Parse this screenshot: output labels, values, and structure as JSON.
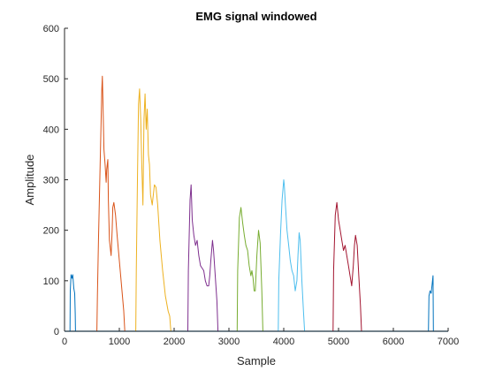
{
  "chart_data": {
    "type": "line",
    "title": "EMG signal windowed",
    "xlabel": "Sample",
    "ylabel": "Amplitude",
    "xlim": [
      0,
      7000
    ],
    "ylim": [
      0,
      600
    ],
    "xticks": [
      0,
      1000,
      2000,
      3000,
      4000,
      5000,
      6000,
      7000
    ],
    "yticks": [
      0,
      100,
      200,
      300,
      400,
      500,
      600
    ],
    "grid": false,
    "legend": "none",
    "baseline": {
      "color": "#0072BD",
      "x": [
        0,
        7000
      ],
      "y": [
        0,
        0
      ]
    },
    "series": [
      {
        "color": "#0072BD",
        "x": [
          100,
          105,
          120,
          135,
          150,
          170,
          185,
          195,
          200
        ],
        "y": [
          0,
          80,
          112,
          105,
          112,
          85,
          75,
          35,
          0
        ]
      },
      {
        "color": "#D95319",
        "x": [
          590,
          600,
          620,
          650,
          680,
          690,
          700,
          720,
          740,
          760,
          770,
          790,
          800,
          820,
          850,
          870,
          880,
          900,
          930,
          960,
          1000,
          1040,
          1080,
          1100
        ],
        "y": [
          0,
          70,
          180,
          330,
          480,
          505,
          460,
          360,
          330,
          295,
          320,
          340,
          260,
          180,
          150,
          200,
          245,
          255,
          230,
          190,
          140,
          90,
          40,
          0
        ]
      },
      {
        "color": "#EDB120",
        "x": [
          1300,
          1310,
          1330,
          1350,
          1370,
          1390,
          1410,
          1430,
          1450,
          1470,
          1490,
          1510,
          1530,
          1550,
          1570,
          1600,
          1640,
          1670,
          1700,
          1740,
          1790,
          1840,
          1890,
          1920,
          1940
        ],
        "y": [
          0,
          120,
          300,
          450,
          480,
          420,
          330,
          250,
          420,
          470,
          400,
          440,
          350,
          330,
          270,
          250,
          290,
          285,
          250,
          180,
          120,
          70,
          40,
          30,
          0
        ]
      },
      {
        "color": "#7E2F8E",
        "x": [
          2250,
          2260,
          2290,
          2310,
          2330,
          2360,
          2390,
          2420,
          2450,
          2480,
          2510,
          2540,
          2570,
          2600,
          2630,
          2650,
          2670,
          2700,
          2720,
          2750,
          2780,
          2800
        ],
        "y": [
          0,
          120,
          260,
          290,
          220,
          190,
          170,
          180,
          150,
          130,
          125,
          120,
          100,
          90,
          90,
          110,
          140,
          180,
          160,
          110,
          60,
          0
        ]
      },
      {
        "color": "#77AC30",
        "x": [
          3150,
          3160,
          3190,
          3220,
          3250,
          3280,
          3310,
          3340,
          3370,
          3400,
          3420,
          3440,
          3460,
          3480,
          3510,
          3540,
          3570,
          3600,
          3620
        ],
        "y": [
          0,
          120,
          225,
          245,
          215,
          190,
          170,
          160,
          130,
          110,
          120,
          105,
          80,
          80,
          150,
          200,
          175,
          80,
          0
        ]
      },
      {
        "color": "#4DBEEE",
        "x": [
          3900,
          3910,
          3940,
          3970,
          4000,
          4010,
          4030,
          4060,
          4090,
          4120,
          4150,
          4180,
          4210,
          4240,
          4260,
          4280,
          4300,
          4330,
          4360,
          4380
        ],
        "y": [
          0,
          100,
          190,
          260,
          300,
          290,
          250,
          200,
          170,
          140,
          120,
          110,
          80,
          100,
          150,
          195,
          180,
          100,
          40,
          0
        ]
      },
      {
        "color": "#A2142F",
        "x": [
          4900,
          4910,
          4940,
          4970,
          5000,
          5030,
          5060,
          5090,
          5120,
          5150,
          5180,
          5210,
          5240,
          5270,
          5290,
          5310,
          5340,
          5370,
          5400,
          5420
        ],
        "y": [
          0,
          120,
          230,
          255,
          220,
          200,
          180,
          160,
          170,
          150,
          130,
          110,
          90,
          130,
          170,
          190,
          170,
          110,
          50,
          0
        ]
      },
      {
        "color": "#0072BD",
        "x": [
          6640,
          6650,
          6670,
          6690,
          6710,
          6725,
          6730
        ],
        "y": [
          0,
          70,
          80,
          75,
          95,
          110,
          0
        ]
      }
    ]
  }
}
